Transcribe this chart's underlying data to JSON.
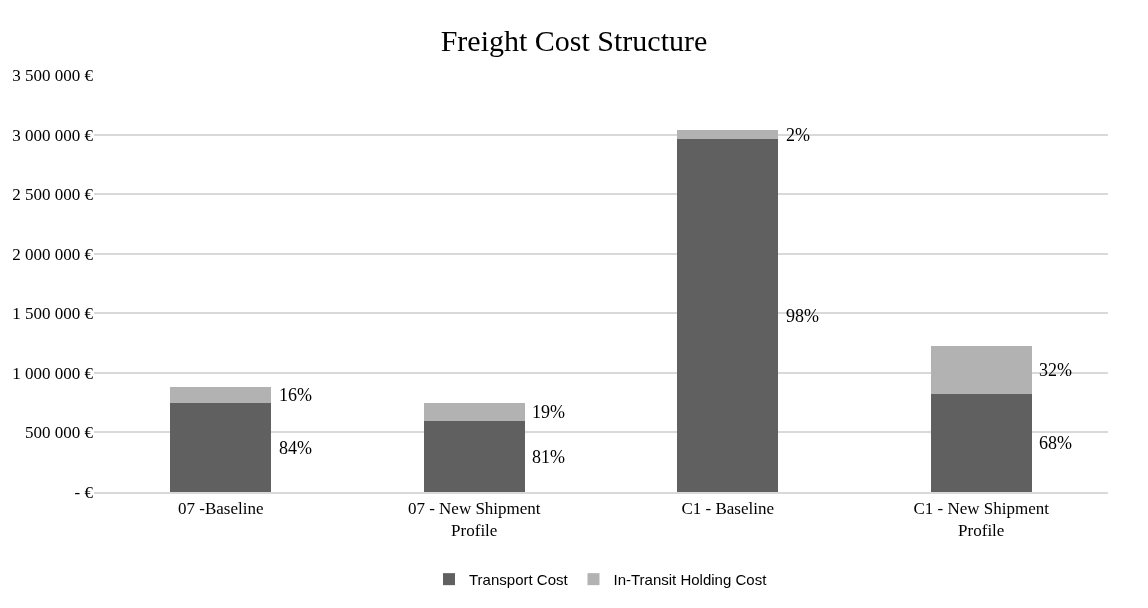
{
  "chart_data": {
    "type": "bar",
    "title": "Freight Cost Structure",
    "stacked": true,
    "categories": [
      "07 -Baseline",
      "07 - New Shipment Profile",
      "C1 - Baseline",
      "C1 - New Shipment Profile"
    ],
    "series": [
      {
        "name": "Transport Cost",
        "color": "#606060",
        "values": [
          745000,
          595000,
          2960000,
          825000
        ]
      },
      {
        "name": "In-Transit Holding Cost",
        "color": "#b2b2b2",
        "values": [
          135000,
          150000,
          75000,
          400000
        ]
      }
    ],
    "annotations": [
      "84%",
      "16%",
      "81%",
      "19%",
      "98%",
      "2%",
      "68%",
      "32%"
    ],
    "ylim": [
      0,
      3500000
    ],
    "yticks": [
      {
        "value": 0,
        "label": "- €"
      },
      {
        "value": 500000,
        "label": "500 000 €"
      },
      {
        "value": 1000000,
        "label": "1 000 000 €"
      },
      {
        "value": 1500000,
        "label": "1 500 000 €"
      },
      {
        "value": 2000000,
        "label": "2 000 000 €"
      },
      {
        "value": 2500000,
        "label": "2 500 000 €"
      },
      {
        "value": 3000000,
        "label": "3 000 000 €"
      },
      {
        "value": 3500000,
        "label": "3 500 000 €"
      }
    ],
    "grid": "y",
    "legend": "bottom"
  }
}
